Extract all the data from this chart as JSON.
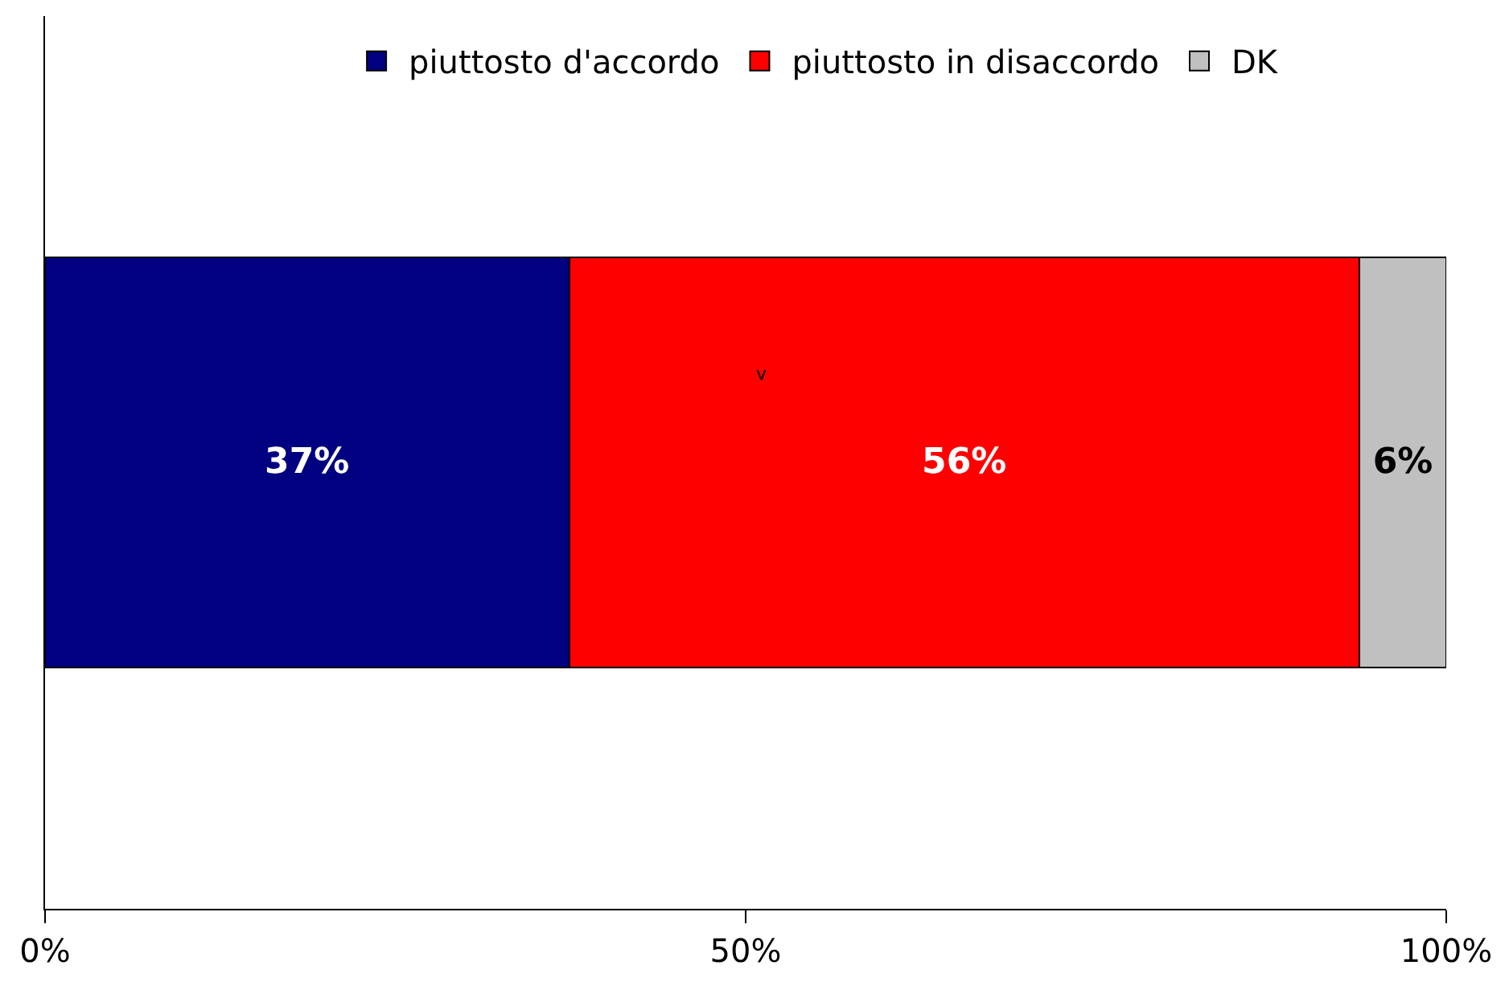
{
  "chart_data": {
    "type": "bar",
    "orientation": "horizontal",
    "stacked": true,
    "categories": [
      null
    ],
    "series": [
      {
        "name": "piuttosto d'accordo",
        "color": "#000080",
        "values": [
          37.4
        ],
        "value_labels": [
          "37%"
        ]
      },
      {
        "name": "piuttosto in disaccordo",
        "color": "#ff0000",
        "values": [
          56.4
        ],
        "value_labels": [
          "56%"
        ]
      },
      {
        "name": "DK",
        "color": "#c0c0c0",
        "values": [
          6.2
        ],
        "value_labels": [
          "6%"
        ]
      }
    ],
    "xlim": [
      0,
      100
    ],
    "xticks": [
      {
        "value": 0,
        "label": "0%"
      },
      {
        "value": 50,
        "label": "50%"
      },
      {
        "value": 100,
        "label": "100%"
      }
    ],
    "tick_labels": "x",
    "legend": "top",
    "annotations": [
      "v"
    ]
  }
}
